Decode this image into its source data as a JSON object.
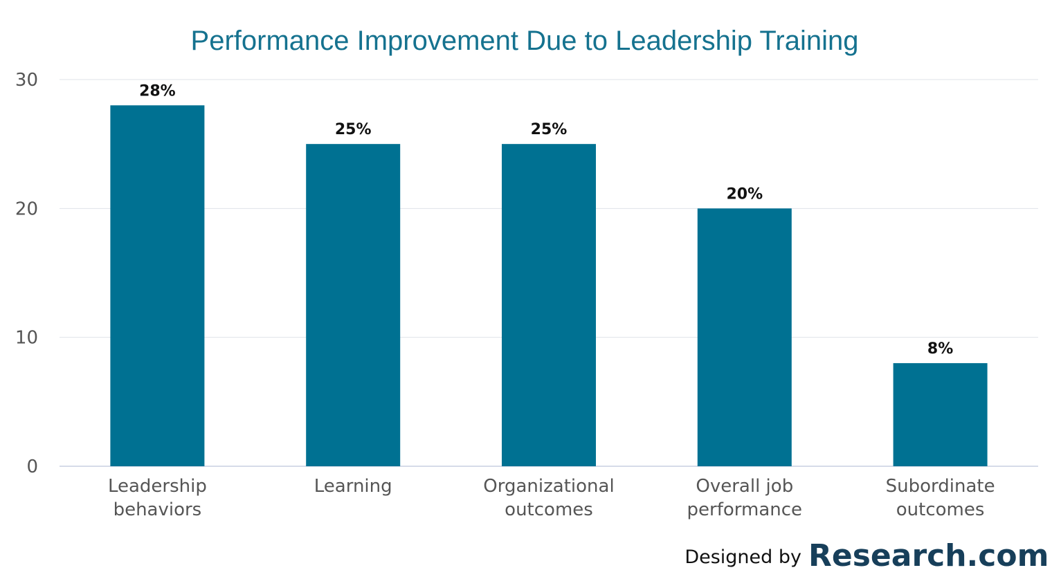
{
  "chart_data": {
    "type": "bar",
    "title": "Performance Improvement Due to Leadership Training",
    "xlabel": "",
    "ylabel": "",
    "categories": [
      [
        "Leadership",
        "behaviors"
      ],
      [
        "Learning"
      ],
      [
        "Organizational",
        "outcomes"
      ],
      [
        "Overall job",
        "performance"
      ],
      [
        "Subordinate",
        "outcomes"
      ]
    ],
    "values": [
      28,
      25,
      25,
      20,
      8
    ],
    "data_labels": [
      "28%",
      "25%",
      "25%",
      "20%",
      "8%"
    ],
    "ylim": [
      0,
      30
    ],
    "yticks": [
      0,
      10,
      20,
      30
    ],
    "grid": true,
    "legend": "none",
    "colors": {
      "bar": "#007192",
      "grid": "#dfe3ea",
      "title": "#15728f"
    }
  },
  "credit": {
    "lead": "Designed by",
    "brand": "Research.com"
  }
}
